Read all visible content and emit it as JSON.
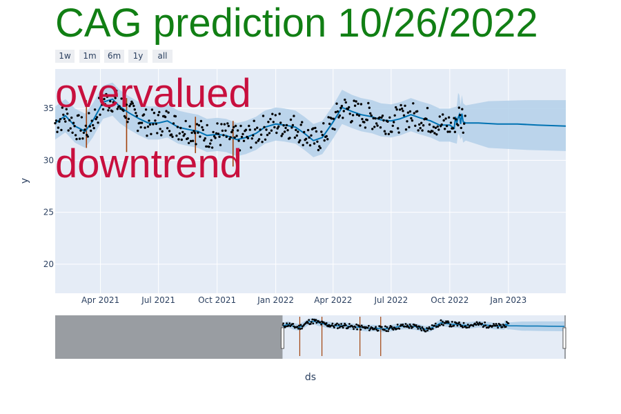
{
  "title": "CAG prediction 10/26/2022",
  "colors": {
    "title": "#117f14",
    "annotation": "#c8103e",
    "plot_bg": "#e5ecf6",
    "forecast_line": "#0072b2",
    "uncertainty_band": "#b6d2ea",
    "observed_points": "#000000",
    "changepoints": "#a0400a",
    "rangeslider_mask": "#8c8f93"
  },
  "range_buttons": [
    "1w",
    "1m",
    "6m",
    "1y",
    "all"
  ],
  "annotations": [
    "overvalued",
    "downtrend"
  ],
  "chart_data": {
    "type": "line",
    "title": "CAG prediction 10/26/2022",
    "xlabel": "ds",
    "ylabel": "y",
    "x_range": [
      "2021-01-20",
      "2023-04-01"
    ],
    "y_range": [
      17.2,
      38.8
    ],
    "x_ticks": [
      {
        "date": "2021-04-01",
        "label": "Apr 2021"
      },
      {
        "date": "2021-07-01",
        "label": "Jul 2021"
      },
      {
        "date": "2021-10-01",
        "label": "Oct 2021"
      },
      {
        "date": "2022-01-01",
        "label": "Jan 2022"
      },
      {
        "date": "2022-04-01",
        "label": "Apr 2022"
      },
      {
        "date": "2022-07-01",
        "label": "Jul 2022"
      },
      {
        "date": "2022-10-01",
        "label": "Oct 2022"
      },
      {
        "date": "2023-01-01",
        "label": "Jan 2023"
      }
    ],
    "y_ticks": [
      20,
      25,
      30,
      35
    ],
    "grid": true,
    "series": [
      {
        "style": "line",
        "x": [
          "2021-01-20",
          "2021-02-05",
          "2021-02-20",
          "2021-03-08",
          "2021-03-20",
          "2021-04-05",
          "2021-04-20",
          "2021-05-01",
          "2021-05-15",
          "2021-06-01",
          "2021-06-15",
          "2021-07-01",
          "2021-07-15",
          "2021-08-01",
          "2021-08-15",
          "2021-09-01",
          "2021-09-15",
          "2021-10-01",
          "2021-10-15",
          "2021-11-01",
          "2021-11-15",
          "2021-12-01",
          "2021-12-15",
          "2022-01-01",
          "2022-01-15",
          "2022-02-01",
          "2022-02-15",
          "2022-03-01",
          "2022-03-15",
          "2022-04-01",
          "2022-04-15",
          "2022-05-01",
          "2022-05-15",
          "2022-06-01",
          "2022-06-15",
          "2022-07-01",
          "2022-07-15",
          "2022-08-01",
          "2022-08-15",
          "2022-09-01",
          "2022-09-15",
          "2022-10-01",
          "2022-10-08",
          "2022-10-10",
          "2022-10-12",
          "2022-10-14",
          "2022-10-16",
          "2022-10-18",
          "2022-10-20",
          "2022-10-22",
          "2022-10-26",
          "2022-11-15",
          "2022-12-15",
          "2023-01-15",
          "2023-02-15",
          "2023-04-01"
        ],
        "y": [
          33.6,
          34.3,
          33.3,
          32.8,
          33.8,
          35.6,
          35.9,
          35.2,
          34.6,
          34.0,
          33.6,
          33.6,
          33.8,
          33.2,
          33.0,
          32.8,
          32.4,
          32.5,
          32.4,
          32.0,
          32.2,
          32.6,
          33.2,
          33.5,
          33.4,
          33.2,
          32.6,
          31.9,
          32.2,
          33.7,
          35.1,
          34.7,
          34.4,
          34.2,
          33.9,
          33.8,
          34.0,
          34.4,
          34.1,
          33.8,
          33.4,
          33.4,
          33.1,
          34.2,
          33.6,
          34.1,
          34.4,
          33.5,
          34.5,
          33.7,
          33.6,
          33.6,
          33.5,
          33.5,
          33.4,
          33.3
        ]
      }
    ],
    "uncertainty_band": {
      "x": [
        "2021-01-20",
        "2021-02-05",
        "2021-02-20",
        "2021-03-08",
        "2021-03-20",
        "2021-04-05",
        "2021-04-20",
        "2021-05-01",
        "2021-05-15",
        "2021-06-01",
        "2021-06-15",
        "2021-07-01",
        "2021-07-15",
        "2021-08-01",
        "2021-08-15",
        "2021-09-01",
        "2021-09-15",
        "2021-10-01",
        "2021-10-15",
        "2021-11-01",
        "2021-11-15",
        "2021-12-01",
        "2021-12-15",
        "2022-01-01",
        "2022-01-15",
        "2022-02-01",
        "2022-02-15",
        "2022-03-01",
        "2022-03-15",
        "2022-04-01",
        "2022-04-15",
        "2022-05-01",
        "2022-05-15",
        "2022-06-01",
        "2022-06-15",
        "2022-07-01",
        "2022-07-15",
        "2022-08-01",
        "2022-08-15",
        "2022-09-01",
        "2022-09-15",
        "2022-10-01",
        "2022-10-12",
        "2022-10-14",
        "2022-10-16",
        "2022-10-18",
        "2022-10-20",
        "2022-10-22",
        "2022-10-26",
        "2022-12-01",
        "2023-02-01",
        "2023-04-01"
      ],
      "upper": [
        35.2,
        35.9,
        35.0,
        34.5,
        35.5,
        37.2,
        37.5,
        36.8,
        36.2,
        35.6,
        35.2,
        35.2,
        35.4,
        34.8,
        34.6,
        34.4,
        34.0,
        34.1,
        34.0,
        33.6,
        33.8,
        34.2,
        34.8,
        35.1,
        35.0,
        34.8,
        34.2,
        33.5,
        33.8,
        35.3,
        36.8,
        36.3,
        36.0,
        35.8,
        35.5,
        35.4,
        35.6,
        36.0,
        35.7,
        35.4,
        35.0,
        35.0,
        35.2,
        36.5,
        36.3,
        35.3,
        36.3,
        35.5,
        35.3,
        35.7,
        35.8,
        35.8
      ],
      "lower": [
        32.0,
        32.7,
        31.7,
        31.2,
        32.2,
        34.0,
        34.3,
        33.6,
        33.0,
        32.4,
        32.0,
        32.0,
        32.2,
        31.6,
        31.4,
        31.2,
        30.8,
        30.9,
        30.8,
        30.4,
        30.6,
        31.0,
        31.6,
        31.9,
        31.8,
        31.6,
        31.0,
        30.3,
        30.6,
        32.1,
        33.5,
        33.1,
        32.8,
        32.6,
        32.3,
        32.2,
        32.4,
        32.8,
        32.5,
        32.2,
        31.8,
        31.8,
        31.6,
        32.6,
        32.4,
        32.0,
        32.3,
        31.7,
        31.9,
        31.2,
        31.0,
        30.9
      ]
    },
    "observed_points_note": "observed daily prices shown as black dots, Jan 2021 – Oct 26 2022",
    "changepoints": [
      {
        "x": "2021-03-10",
        "y0": 31.2,
        "y1": 35.8
      },
      {
        "x": "2021-05-12",
        "y0": 30.8,
        "y1": 36.0
      },
      {
        "x": "2021-08-28",
        "y0": 30.7,
        "y1": 34.2
      },
      {
        "x": "2021-10-26",
        "y0": 29.4,
        "y1": 33.8
      }
    ],
    "rangeslider": {
      "x_range": [
        "2019-04-15",
        "2023-04-05"
      ],
      "window": [
        "2021-01-20",
        "2023-04-01"
      ]
    }
  }
}
